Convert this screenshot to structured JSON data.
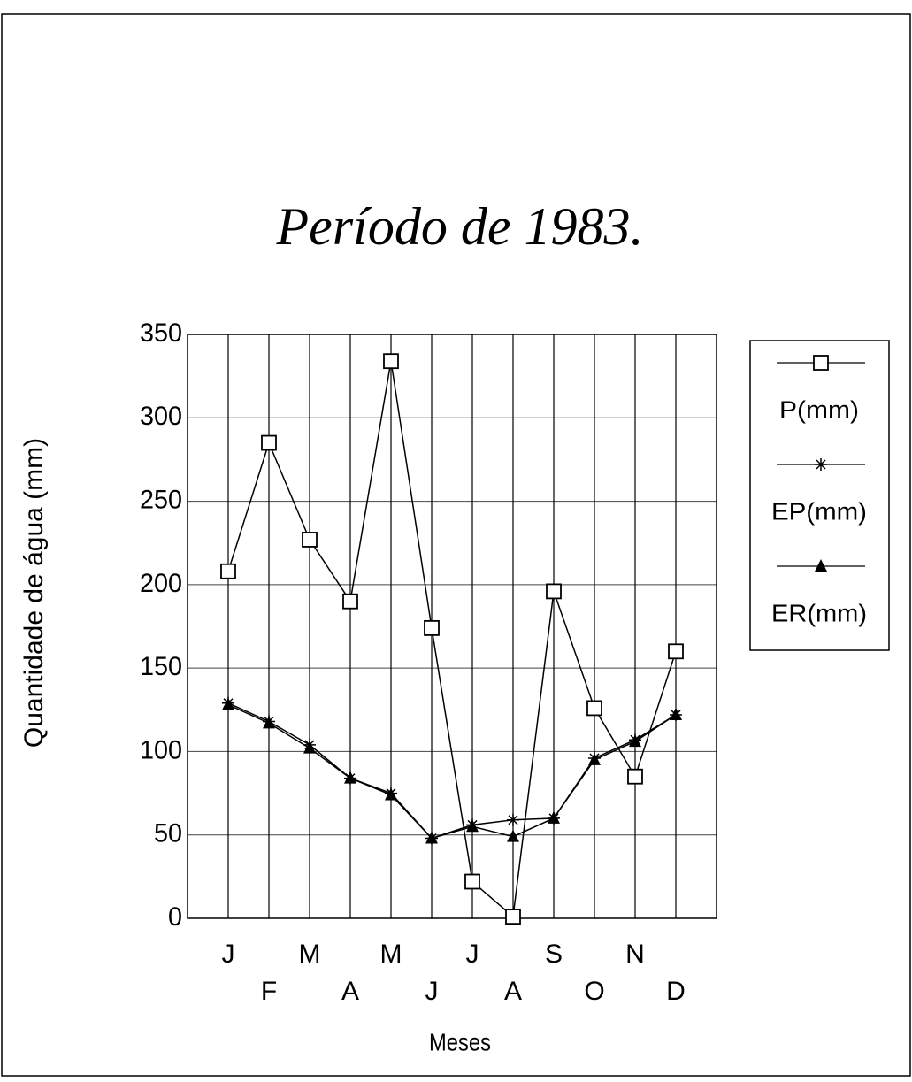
{
  "chart_data": {
    "type": "line",
    "title": "Período de 1983.",
    "xlabel": "Meses",
    "ylabel": "Quantidade de água (mm)",
    "categories": [
      "J",
      "F",
      "M",
      "A",
      "M",
      "J",
      "J",
      "A",
      "S",
      "O",
      "N",
      "D"
    ],
    "series": [
      {
        "name": "P(mm)",
        "color": "#000000",
        "marker": "square",
        "values": [
          208,
          285,
          227,
          190,
          334,
          174,
          22,
          1,
          196,
          126,
          85,
          160
        ]
      },
      {
        "name": "EP(mm)",
        "color": "#000000",
        "marker": "star",
        "values": [
          129,
          118,
          104,
          84,
          75,
          48,
          56,
          59,
          60,
          96,
          107,
          122
        ]
      },
      {
        "name": "ER(mm)",
        "color": "#000000",
        "marker": "triangle",
        "values": [
          128,
          117,
          102,
          84,
          74,
          48,
          55,
          49,
          60,
          95,
          106,
          122
        ]
      }
    ],
    "ylim": [
      0,
      350
    ],
    "yticks": [
      0,
      50,
      100,
      150,
      200,
      250,
      300,
      350
    ],
    "grid": true,
    "legend": "right"
  }
}
